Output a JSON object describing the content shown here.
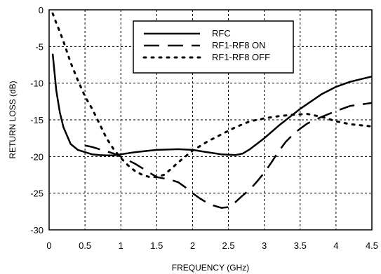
{
  "chart_data": {
    "type": "line",
    "xlabel": "FREQUENCY (GHz)",
    "ylabel": "RETURN LOSS (dB)",
    "xlim": [
      0,
      4.5
    ],
    "ylim": [
      -30,
      0
    ],
    "xticks": [
      0,
      0.5,
      1,
      1.5,
      2,
      2.5,
      3,
      3.5,
      4,
      4.5
    ],
    "xtick_labels": [
      "0",
      "0.5",
      "1",
      "1.5",
      "2",
      "2.5",
      "3",
      "3.5",
      "4",
      "4.5"
    ],
    "yticks": [
      0,
      -5,
      -10,
      -15,
      -20,
      -25,
      -30
    ],
    "ytick_labels": [
      "0",
      "-5",
      "-10",
      "-15",
      "-20",
      "-25",
      "-30"
    ],
    "grid": true,
    "legend_position": "top-center",
    "series": [
      {
        "name": "RFC",
        "style": "solid",
        "color": "#000000",
        "x": [
          0.05,
          0.1,
          0.15,
          0.2,
          0.3,
          0.4,
          0.5,
          0.6,
          0.7,
          0.8,
          0.9,
          1.0,
          1.2,
          1.5,
          1.8,
          2.0,
          2.2,
          2.4,
          2.6,
          2.7,
          2.8,
          3.0,
          3.2,
          3.5,
          3.8,
          4.0,
          4.2,
          4.5
        ],
        "y": [
          -6,
          -11,
          -14,
          -16,
          -18.3,
          -19.1,
          -19.4,
          -19.7,
          -19.8,
          -19.85,
          -19.85,
          -19.7,
          -19.4,
          -19.1,
          -19.0,
          -19.1,
          -19.4,
          -19.7,
          -19.8,
          -19.6,
          -19.0,
          -17.5,
          -15.8,
          -13.5,
          -11.5,
          -10.5,
          -9.8,
          -9.1
        ]
      },
      {
        "name": "RF1-RF8 ON",
        "style": "dashed",
        "color": "#000000",
        "x": [
          0.5,
          0.6,
          0.7,
          0.8,
          0.9,
          1.0,
          1.1,
          1.2,
          1.3,
          1.4,
          1.5,
          1.6,
          1.7,
          1.8,
          1.9,
          2.0,
          2.1,
          2.2,
          2.3,
          2.4,
          2.5,
          2.6,
          2.7,
          2.8,
          2.9,
          3.0,
          3.1,
          3.2,
          3.3,
          3.4,
          3.5,
          3.6,
          3.8,
          4.0,
          4.2,
          4.5
        ],
        "y": [
          -18.5,
          -18.7,
          -19.0,
          -19.3,
          -19.6,
          -20.0,
          -20.5,
          -21.0,
          -21.6,
          -22.2,
          -22.8,
          -23.0,
          -23.2,
          -23.5,
          -24.2,
          -25.0,
          -25.7,
          -26.3,
          -26.7,
          -27.0,
          -26.9,
          -26.2,
          -25.3,
          -24.5,
          -23.4,
          -22.2,
          -20.8,
          -19.3,
          -18.0,
          -17.0,
          -16.2,
          -15.5,
          -14.6,
          -13.8,
          -13.1,
          -12.7
        ]
      },
      {
        "name": "RF1-RF8 OFF",
        "style": "dotted",
        "color": "#000000",
        "x": [
          0.05,
          0.1,
          0.15,
          0.2,
          0.3,
          0.4,
          0.5,
          0.6,
          0.7,
          0.8,
          0.9,
          1.0,
          1.1,
          1.2,
          1.3,
          1.4,
          1.5,
          1.6,
          1.7,
          1.8,
          1.9,
          2.0,
          2.2,
          2.4,
          2.6,
          2.8,
          3.0,
          3.2,
          3.4,
          3.6,
          3.8,
          4.0,
          4.2,
          4.5
        ],
        "y": [
          -0.5,
          -1.8,
          -3,
          -4.3,
          -7.2,
          -9.6,
          -11.8,
          -13.5,
          -15.5,
          -17.5,
          -19.0,
          -20.2,
          -21.2,
          -22.0,
          -22.5,
          -22.8,
          -22.8,
          -22.5,
          -21.7,
          -20.8,
          -20.0,
          -19.2,
          -18.0,
          -17.0,
          -16.0,
          -15.2,
          -14.8,
          -14.5,
          -14.3,
          -14.2,
          -14.6,
          -15.2,
          -15.6,
          -15.9
        ]
      }
    ]
  }
}
